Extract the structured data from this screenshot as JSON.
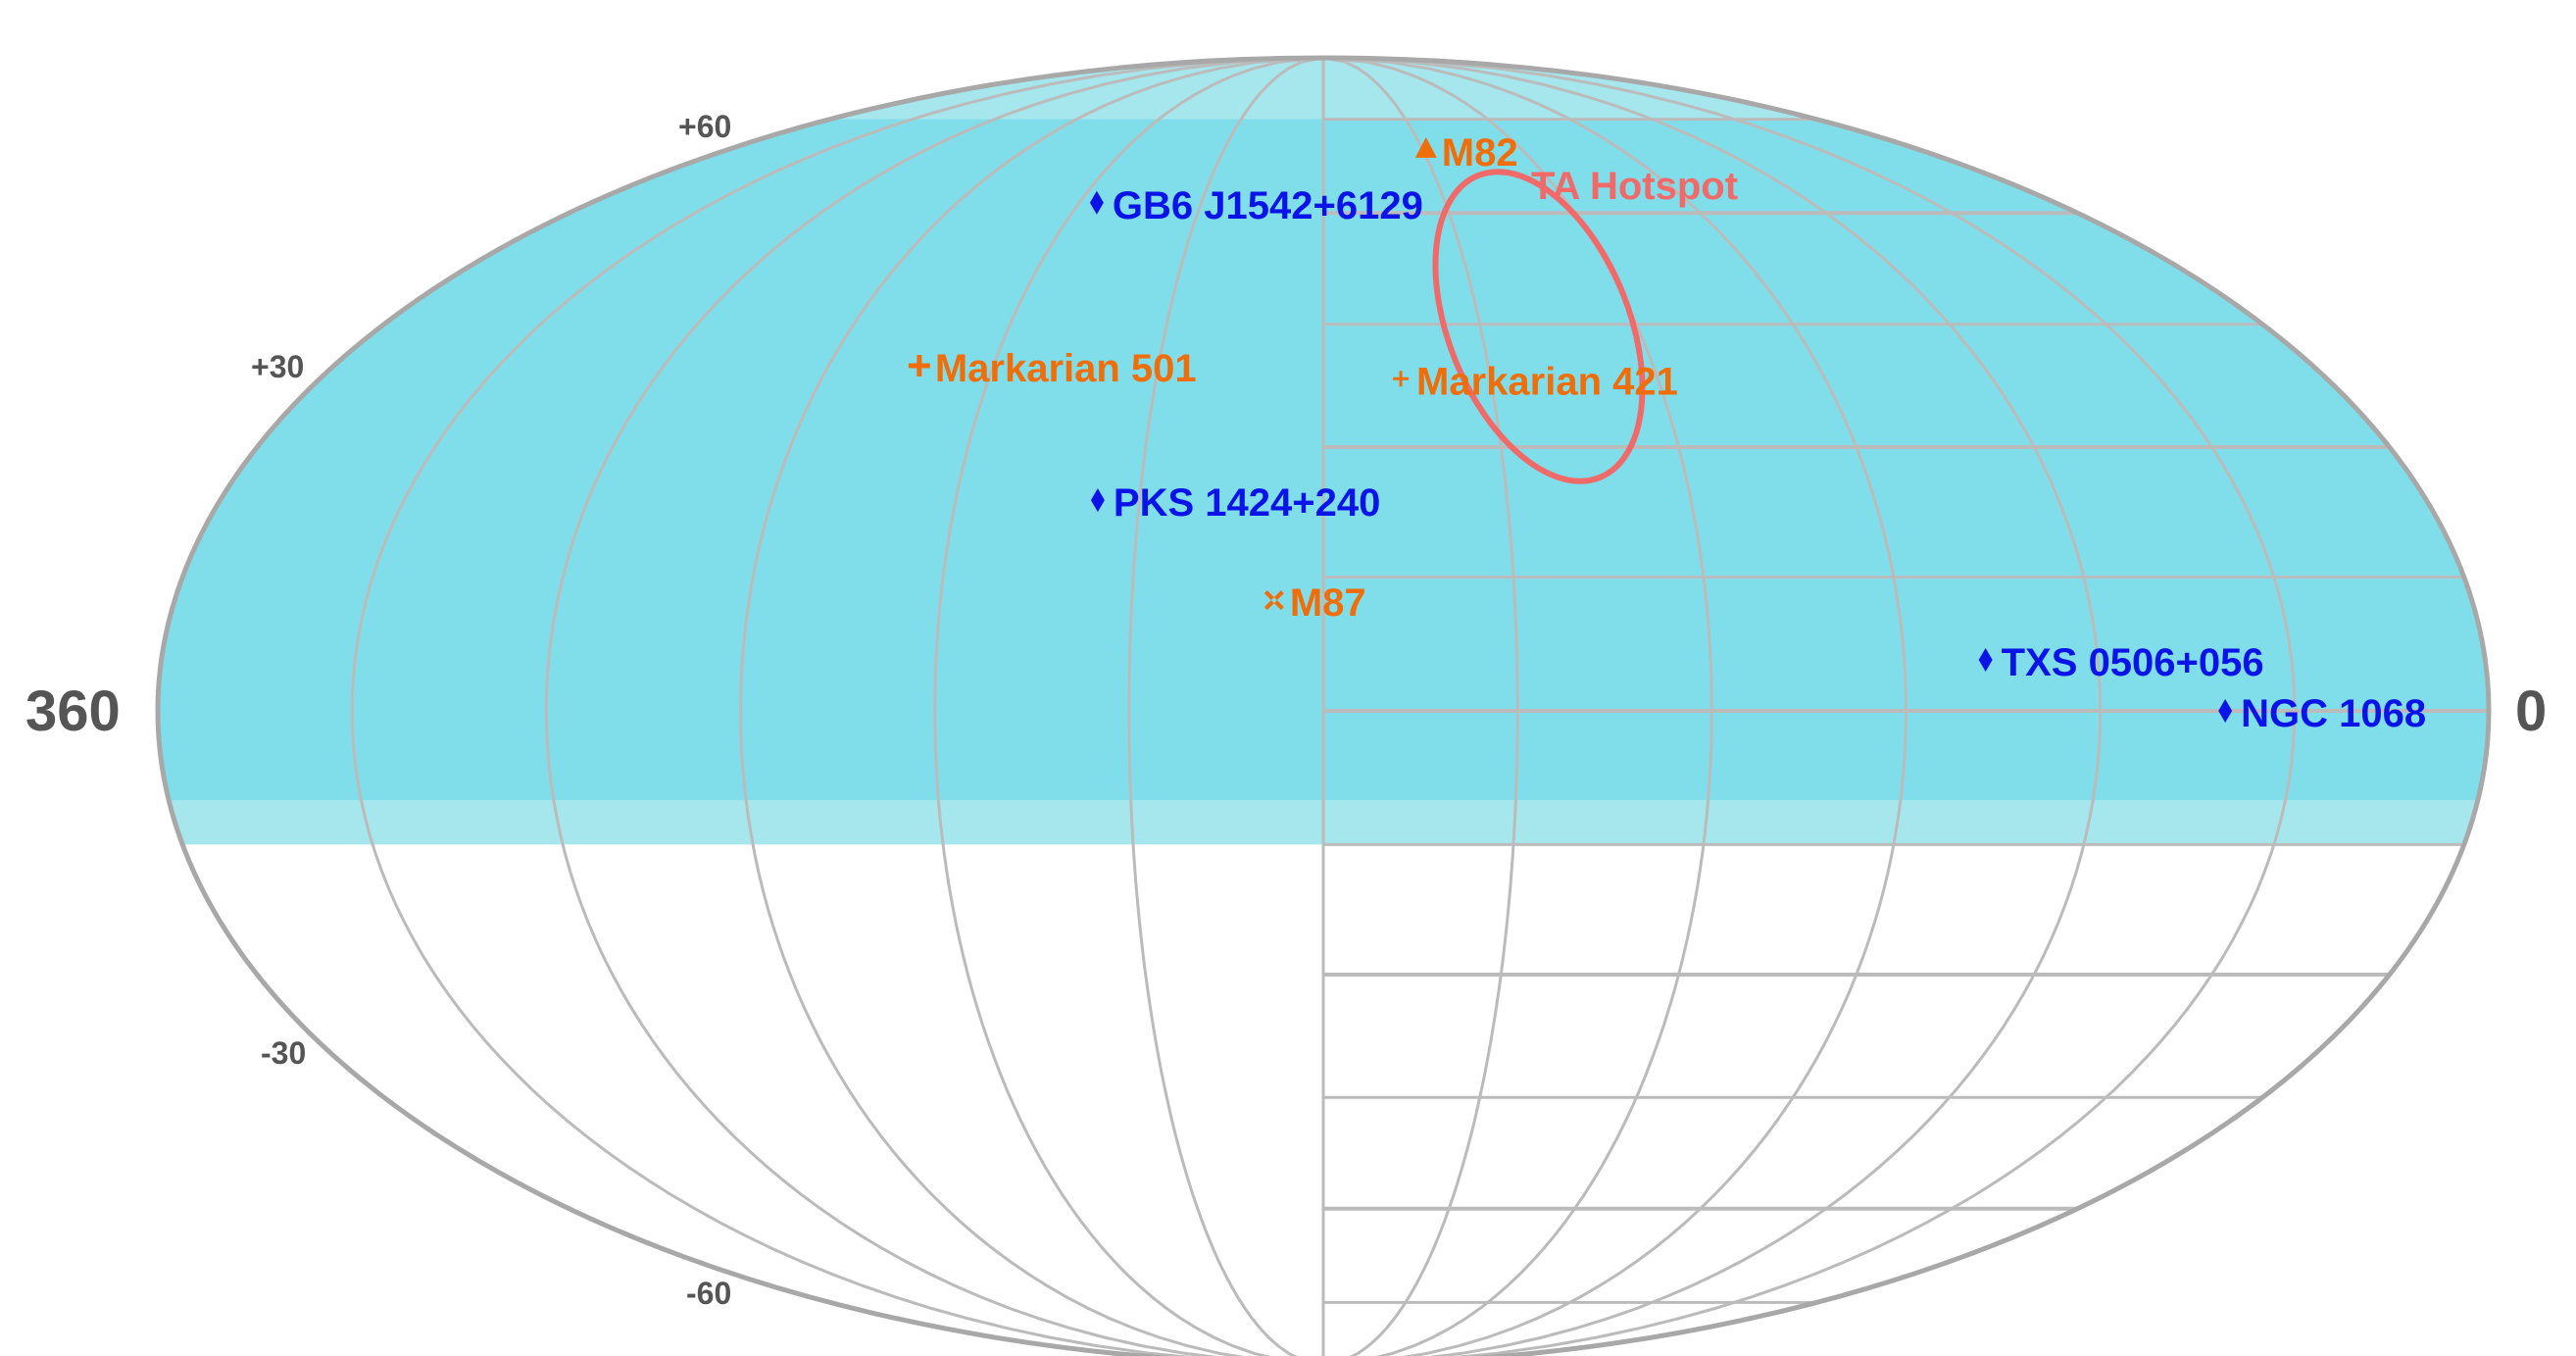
{
  "map": {
    "projection": "Mollweide (equatorial, RA increasing to the left)",
    "longitude_axis": {
      "left_label": "360",
      "right_label": "0"
    },
    "latitude_ticks": [
      {
        "value": 60,
        "label": "+60"
      },
      {
        "value": 30,
        "label": "+30"
      },
      {
        "value": -30,
        "label": "-30"
      },
      {
        "value": -60,
        "label": "-60"
      }
    ],
    "graticule": {
      "meridian_step_deg": 30,
      "parallels_deg": [
        -75,
        -60,
        -45,
        -30,
        -15,
        0,
        15,
        30,
        45,
        60,
        75
      ]
    },
    "coverage": {
      "fill": "#80deea",
      "edge_fill": "#a6e7ee",
      "dec_range": [
        -15,
        90
      ],
      "note": "shaded sky band with lighter fringe near -15 to -10 deg"
    },
    "colors": {
      "grid": "#bbbbbb",
      "outline": "#a8a8a8",
      "tick_text": "#555555",
      "blue_source": "#0a14e6",
      "orange_source": "#f06e0a",
      "hotspot": "#f06a6a"
    },
    "sources": [
      {
        "name": "M82",
        "ra": 149.0,
        "dec": 69.7,
        "marker": "triangle",
        "color": "#f06e0a"
      },
      {
        "name": "GB6 J1542+6129",
        "ra": 235.7,
        "dec": 61.5,
        "marker": "diamond",
        "color": "#0a14e6"
      },
      {
        "name": "Markarian 501",
        "ra": 253.5,
        "dec": 39.8,
        "marker": "plus",
        "color": "#f06e0a"
      },
      {
        "name": "Markarian 421",
        "ra": 166.1,
        "dec": 38.2,
        "marker": "plus-small",
        "color": "#f06e0a"
      },
      {
        "name": "PKS 1424+240",
        "ra": 216.8,
        "dec": 23.8,
        "marker": "diamond",
        "color": "#0a14e6"
      },
      {
        "name": "M87",
        "ra": 187.7,
        "dec": 12.4,
        "marker": "x",
        "color": "#f06e0a"
      },
      {
        "name": "TXS 0506+056",
        "ra": 77.4,
        "dec": 5.7,
        "marker": "diamond",
        "color": "#0a14e6"
      },
      {
        "name": "NGC 1068",
        "ra": 40.7,
        "dec": 0.0,
        "marker": "diamond",
        "color": "#0a14e6"
      }
    ],
    "hotspot": {
      "label": "TA Hotspot",
      "center_ra": 146.5,
      "center_dec": 42.5,
      "note": "elliptical outline"
    }
  }
}
